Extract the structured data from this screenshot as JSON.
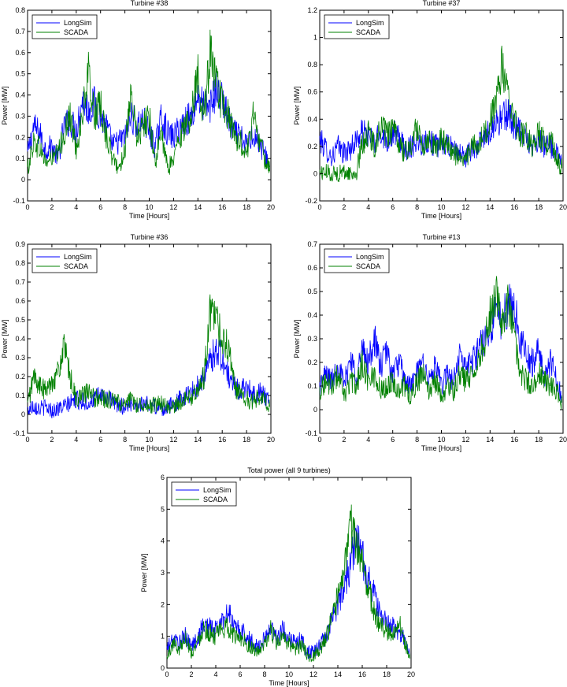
{
  "legend_labels": [
    "LongSim",
    "SCADA"
  ],
  "colors": {
    "LongSim": "#0000ff",
    "SCADA": "#008000"
  },
  "chart_data": [
    {
      "type": "line",
      "title": "Turbine #38",
      "xlabel": "Time [Hours]",
      "ylabel": "Power [MW]",
      "xlim": [
        0,
        20
      ],
      "ylim": [
        -0.1,
        0.8
      ],
      "xticks": [
        "0",
        "2",
        "4",
        "6",
        "8",
        "10",
        "12",
        "14",
        "16",
        "18",
        "20"
      ],
      "yticks": [
        "-0.1",
        "0",
        "0.1",
        "0.2",
        "0.3",
        "0.4",
        "0.5",
        "0.6",
        "0.7",
        "0.8"
      ],
      "legend": "top-left",
      "series": [
        {
          "name": "LongSim",
          "x": [
            0,
            0.5,
            1,
            1.5,
            2,
            2.5,
            3,
            3.5,
            4,
            4.5,
            5,
            5.5,
            6,
            6.5,
            7,
            7.5,
            8,
            8.5,
            9,
            9.5,
            10,
            10.5,
            11,
            11.5,
            12,
            12.5,
            13,
            13.5,
            14,
            14.5,
            15,
            15.5,
            16,
            16.5,
            17,
            17.5,
            18,
            18.5,
            19,
            19.5,
            19.9
          ],
          "y": [
            0.12,
            0.25,
            0.22,
            0.14,
            0.16,
            0.1,
            0.25,
            0.28,
            0.23,
            0.38,
            0.33,
            0.36,
            0.3,
            0.25,
            0.16,
            0.18,
            0.2,
            0.3,
            0.26,
            0.28,
            0.22,
            0.15,
            0.3,
            0.22,
            0.2,
            0.25,
            0.28,
            0.3,
            0.4,
            0.34,
            0.35,
            0.42,
            0.38,
            0.28,
            0.22,
            0.2,
            0.16,
            0.22,
            0.18,
            0.12,
            0.06
          ]
        },
        {
          "name": "SCADA",
          "x": [
            0,
            0.5,
            1,
            1.5,
            2,
            2.5,
            3,
            3.5,
            4,
            4.5,
            5,
            5.5,
            6,
            6.5,
            7,
            7.5,
            8,
            8.5,
            9,
            9.5,
            10,
            10.5,
            11,
            11.5,
            12,
            12.5,
            13,
            13.5,
            14,
            14.5,
            15,
            15.5,
            16,
            16.5,
            17,
            17.5,
            18,
            18.5,
            19,
            19.5,
            19.9
          ],
          "y": [
            0.05,
            0.18,
            0.15,
            0.08,
            0.1,
            0.12,
            0.22,
            0.3,
            0.15,
            0.3,
            0.5,
            0.3,
            0.35,
            0.2,
            0.1,
            0.05,
            0.15,
            0.38,
            0.2,
            0.25,
            0.3,
            0.08,
            0.22,
            0.05,
            0.1,
            0.2,
            0.25,
            0.32,
            0.5,
            0.3,
            0.6,
            0.45,
            0.35,
            0.3,
            0.2,
            0.18,
            0.12,
            0.3,
            0.2,
            0.1,
            0.04
          ]
        }
      ]
    },
    {
      "type": "line",
      "title": "Turbine #37",
      "xlabel": "Time [Hours]",
      "ylabel": "Power [MW]",
      "xlim": [
        0,
        20
      ],
      "ylim": [
        -0.2,
        1.2
      ],
      "xticks": [
        "0",
        "2",
        "4",
        "6",
        "8",
        "10",
        "12",
        "14",
        "16",
        "18",
        "20"
      ],
      "yticks": [
        "-0.2",
        "0",
        "0.2",
        "0.4",
        "0.6",
        "0.8",
        "1",
        "1.2"
      ],
      "legend": "top-left",
      "series": [
        {
          "name": "LongSim",
          "x": [
            0,
            0.5,
            1,
            1.5,
            2,
            2.5,
            3,
            3.5,
            4,
            4.5,
            5,
            5.5,
            6,
            6.5,
            7,
            7.5,
            8,
            8.5,
            9,
            9.5,
            10,
            10.5,
            11,
            11.5,
            12,
            12.5,
            13,
            13.5,
            14,
            14.5,
            15,
            15.5,
            16,
            16.5,
            17,
            17.5,
            18,
            18.5,
            19,
            19.5,
            19.9
          ],
          "y": [
            0.25,
            0.18,
            0.12,
            0.2,
            0.15,
            0.18,
            0.25,
            0.3,
            0.28,
            0.22,
            0.3,
            0.25,
            0.3,
            0.26,
            0.18,
            0.2,
            0.25,
            0.22,
            0.25,
            0.2,
            0.22,
            0.2,
            0.18,
            0.15,
            0.12,
            0.18,
            0.2,
            0.25,
            0.32,
            0.38,
            0.4,
            0.45,
            0.35,
            0.3,
            0.25,
            0.22,
            0.25,
            0.2,
            0.2,
            0.15,
            0.06
          ]
        },
        {
          "name": "SCADA",
          "x": [
            0,
            0.5,
            1,
            1.5,
            2,
            2.5,
            3,
            3.5,
            4,
            4.5,
            5,
            5.5,
            6,
            6.5,
            7,
            7.5,
            8,
            8.5,
            9,
            9.5,
            10,
            10.5,
            11,
            11.5,
            12,
            12.5,
            13,
            13.5,
            14,
            14.5,
            15,
            15.5,
            16,
            16.5,
            17,
            17.5,
            18,
            18.5,
            19,
            19.5,
            19.9
          ],
          "y": [
            0.01,
            0.01,
            0.0,
            0.0,
            0.01,
            0.0,
            0.0,
            0.22,
            0.3,
            0.2,
            0.35,
            0.28,
            0.32,
            0.22,
            0.15,
            0.2,
            0.35,
            0.2,
            0.28,
            0.18,
            0.25,
            0.22,
            0.15,
            0.12,
            0.1,
            0.2,
            0.22,
            0.28,
            0.4,
            0.5,
            0.8,
            0.55,
            0.4,
            0.3,
            0.28,
            0.2,
            0.3,
            0.22,
            0.25,
            0.12,
            0.04
          ]
        }
      ]
    },
    {
      "type": "line",
      "title": "Turbine #36",
      "xlabel": "Time [Hours]",
      "ylabel": "Power [MW]",
      "xlim": [
        0,
        20
      ],
      "ylim": [
        -0.1,
        0.9
      ],
      "xticks": [
        "0",
        "2",
        "4",
        "6",
        "8",
        "10",
        "12",
        "14",
        "16",
        "18",
        "20"
      ],
      "yticks": [
        "-0.1",
        "0",
        "0.1",
        "0.2",
        "0.3",
        "0.4",
        "0.5",
        "0.6",
        "0.7",
        "0.8",
        "0.9"
      ],
      "legend": "top-left",
      "series": [
        {
          "name": "LongSim",
          "x": [
            0,
            0.5,
            1,
            1.5,
            2,
            2.5,
            3,
            3.5,
            4,
            4.5,
            5,
            5.5,
            6,
            6.5,
            7,
            7.5,
            8,
            8.5,
            9,
            9.5,
            10,
            10.5,
            11,
            11.5,
            12,
            12.5,
            13,
            13.5,
            14,
            14.5,
            15,
            15.5,
            16,
            16.5,
            17,
            17.5,
            18,
            18.5,
            19,
            19.5,
            19.9
          ],
          "y": [
            0.02,
            0.05,
            0.03,
            0.04,
            0.02,
            0.03,
            0.04,
            0.06,
            0.08,
            0.07,
            0.06,
            0.08,
            0.1,
            0.09,
            0.06,
            0.05,
            0.04,
            0.06,
            0.05,
            0.06,
            0.05,
            0.04,
            0.03,
            0.04,
            0.05,
            0.08,
            0.1,
            0.12,
            0.15,
            0.2,
            0.28,
            0.35,
            0.3,
            0.2,
            0.15,
            0.12,
            0.16,
            0.1,
            0.12,
            0.1,
            0.06
          ]
        },
        {
          "name": "SCADA",
          "x": [
            0,
            0.5,
            1,
            1.5,
            2,
            2.5,
            3,
            3.5,
            4,
            4.5,
            5,
            5.5,
            6,
            6.5,
            7,
            7.5,
            8,
            8.5,
            9,
            9.5,
            10,
            10.5,
            11,
            11.5,
            12,
            12.5,
            13,
            13.5,
            14,
            14.5,
            15,
            15.5,
            16,
            16.5,
            17,
            17.5,
            18,
            18.5,
            19,
            19.5,
            19.9
          ],
          "y": [
            0.05,
            0.2,
            0.15,
            0.12,
            0.18,
            0.22,
            0.35,
            0.2,
            0.08,
            0.1,
            0.12,
            0.08,
            0.1,
            0.07,
            0.08,
            0.06,
            0.04,
            0.08,
            0.05,
            0.06,
            0.04,
            0.05,
            0.06,
            0.03,
            0.04,
            0.06,
            0.08,
            0.1,
            0.12,
            0.2,
            0.55,
            0.5,
            0.4,
            0.35,
            0.15,
            0.1,
            0.08,
            0.06,
            0.1,
            0.08,
            0.04
          ]
        }
      ]
    },
    {
      "type": "line",
      "title": "Turbine #13",
      "xlabel": "Time [Hours]",
      "ylabel": "Power [MW]",
      "xlim": [
        0,
        20
      ],
      "ylim": [
        -0.1,
        0.7
      ],
      "xticks": [
        "0",
        "2",
        "4",
        "6",
        "8",
        "10",
        "12",
        "14",
        "16",
        "18",
        "20"
      ],
      "yticks": [
        "-0.1",
        "0",
        "0.1",
        "0.2",
        "0.3",
        "0.4",
        "0.5",
        "0.6",
        "0.7"
      ],
      "legend": "top-left",
      "series": [
        {
          "name": "LongSim",
          "x": [
            0,
            0.5,
            1,
            1.5,
            2,
            2.5,
            3,
            3.5,
            4,
            4.5,
            5,
            5.5,
            6,
            6.5,
            7,
            7.5,
            8,
            8.5,
            9,
            9.5,
            10,
            10.5,
            11,
            11.5,
            12,
            12.5,
            13,
            13.5,
            14,
            14.5,
            15,
            15.5,
            16,
            16.5,
            17,
            17.5,
            18,
            18.5,
            19,
            19.5,
            19.9
          ],
          "y": [
            0.1,
            0.15,
            0.12,
            0.2,
            0.1,
            0.22,
            0.15,
            0.25,
            0.2,
            0.3,
            0.18,
            0.25,
            0.15,
            0.2,
            0.12,
            0.1,
            0.15,
            0.2,
            0.12,
            0.18,
            0.1,
            0.15,
            0.12,
            0.22,
            0.18,
            0.2,
            0.25,
            0.3,
            0.35,
            0.4,
            0.38,
            0.45,
            0.42,
            0.3,
            0.22,
            0.2,
            0.25,
            0.15,
            0.2,
            0.12,
            0.05
          ]
        },
        {
          "name": "SCADA",
          "x": [
            0,
            0.5,
            1,
            1.5,
            2,
            2.5,
            3,
            3.5,
            4,
            4.5,
            5,
            5.5,
            6,
            6.5,
            7,
            7.5,
            8,
            8.5,
            9,
            9.5,
            10,
            10.5,
            11,
            11.5,
            12,
            12.5,
            13,
            13.5,
            14,
            14.5,
            15,
            15.5,
            16,
            16.5,
            17,
            17.5,
            18,
            18.5,
            19,
            19.5,
            19.9
          ],
          "y": [
            0.08,
            0.12,
            0.1,
            0.15,
            0.05,
            0.12,
            0.1,
            0.2,
            0.12,
            0.15,
            0.08,
            0.1,
            0.12,
            0.08,
            0.1,
            0.05,
            0.12,
            0.15,
            0.08,
            0.12,
            0.06,
            0.1,
            0.08,
            0.15,
            0.12,
            0.15,
            0.2,
            0.28,
            0.4,
            0.5,
            0.35,
            0.45,
            0.3,
            0.15,
            0.12,
            0.1,
            0.15,
            0.12,
            0.1,
            0.08,
            0.03
          ]
        }
      ]
    },
    {
      "type": "line",
      "title": "Total power (all 9 turbines)",
      "xlabel": "Time [Hours]",
      "ylabel": "Power [MW]",
      "xlim": [
        0,
        20
      ],
      "ylim": [
        0,
        6
      ],
      "xticks": [
        "0",
        "2",
        "4",
        "6",
        "8",
        "10",
        "12",
        "14",
        "16",
        "18",
        "20"
      ],
      "yticks": [
        "0",
        "1",
        "2",
        "3",
        "4",
        "5",
        "6"
      ],
      "legend": "top-left",
      "series": [
        {
          "name": "LongSim",
          "x": [
            0,
            0.5,
            1,
            1.5,
            2,
            2.5,
            3,
            3.5,
            4,
            4.5,
            5,
            5.5,
            6,
            6.5,
            7,
            7.5,
            8,
            8.5,
            9,
            9.5,
            10,
            10.5,
            11,
            11.5,
            12,
            12.5,
            13,
            13.5,
            14,
            14.5,
            15,
            15.5,
            16,
            16.5,
            17,
            17.5,
            18,
            18.5,
            19,
            19.5,
            19.9
          ],
          "y": [
            0.6,
            0.9,
            0.8,
            1.0,
            0.7,
            0.9,
            1.4,
            1.3,
            1.2,
            1.5,
            1.8,
            1.3,
            1.2,
            1.0,
            0.8,
            0.7,
            0.9,
            1.3,
            1.0,
            1.2,
            1.0,
            0.8,
            0.9,
            0.5,
            0.5,
            0.7,
            1.0,
            1.5,
            2.0,
            2.6,
            3.2,
            4.2,
            3.5,
            2.8,
            2.3,
            1.6,
            1.5,
            1.3,
            1.1,
            0.9,
            0.4
          ]
        },
        {
          "name": "SCADA",
          "x": [
            0,
            0.5,
            1,
            1.5,
            2,
            2.5,
            3,
            3.5,
            4,
            4.5,
            5,
            5.5,
            6,
            6.5,
            7,
            7.5,
            8,
            8.5,
            9,
            9.5,
            10,
            10.5,
            11,
            11.5,
            12,
            12.5,
            13,
            13.5,
            14,
            14.5,
            15,
            15.5,
            16,
            16.5,
            17,
            17.5,
            18,
            18.5,
            19,
            19.5,
            19.9
          ],
          "y": [
            0.3,
            0.8,
            0.6,
            1.0,
            0.5,
            0.8,
            1.3,
            1.1,
            1.0,
            1.2,
            1.3,
            1.0,
            1.0,
            0.8,
            0.6,
            0.5,
            0.7,
            1.2,
            0.8,
            0.9,
            0.8,
            0.6,
            0.7,
            0.4,
            0.4,
            0.6,
            0.9,
            1.5,
            2.2,
            3.0,
            4.5,
            4.0,
            3.2,
            2.5,
            1.8,
            1.3,
            1.2,
            1.0,
            1.5,
            0.8,
            0.3
          ]
        }
      ]
    }
  ]
}
